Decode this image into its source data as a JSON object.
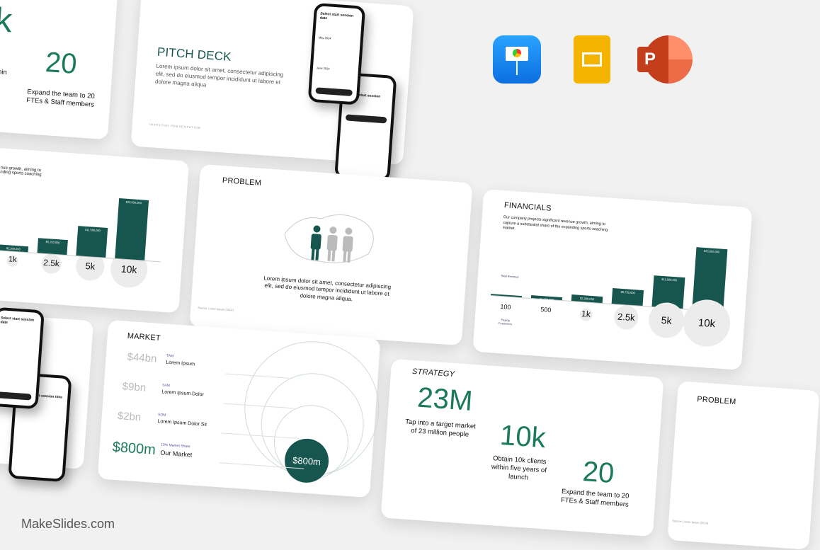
{
  "brand": "MakeSlides.com",
  "apps": [
    {
      "name": "Keynote",
      "color": "#1a8cff"
    },
    {
      "name": "Google Slides",
      "color": "#f4b400"
    },
    {
      "name": "PowerPoint",
      "color": "#d24726"
    }
  ],
  "accent": "#17564e",
  "strategy_partial": {
    "stat_big": "k",
    "stat_text": "s within\nnch",
    "stat3_value": "20",
    "stat3_text": "Expand the team to 20 FTEs & Staff members"
  },
  "pitch": {
    "title": "PITCH DECK",
    "body": "Lorem ipsum dolor sit amet, consectetur adipiscing elit, sed do eiusmod tempor incididunt ut labore et dolore magna aliqua",
    "footer": "INVESTOR PRESENTATION",
    "phone1_title": "Select start session date",
    "phone1_month1": "May 2024",
    "phone1_month2": "June 2024",
    "phone2_title": "Select start session time"
  },
  "chart_partial": {
    "text": "nue growth, aiming to\nnding sports coaching",
    "bars": [
      {
        "label": "1k",
        "value": "$2,300,000"
      },
      {
        "label": "2.5k",
        "value": "$5,750,000"
      },
      {
        "label": "5k",
        "value": "$11,500,000"
      },
      {
        "label": "10k",
        "value": "$23,000,000"
      }
    ]
  },
  "problem": {
    "title": "PROBLEM",
    "body": "Lorem ipsum dolor sit amet, consectetur adipiscing elit, sed do eiusmod tempor incididunt ut labore et dolore magna aliqua.",
    "source": "Source: Lorem ipsum (2024)"
  },
  "financials": {
    "title": "FINANCIALS",
    "body": "Our company projects significant revenue growth, aiming to capture a substantial share of the expanding sports coaching market.",
    "revenue_label": "Total Revenue",
    "customers_label": "Paying Customers",
    "bars": [
      {
        "label": "100",
        "value": "$230,000",
        "revenue": 230000
      },
      {
        "label": "500",
        "value": "$1,150,000",
        "revenue": 1150000
      },
      {
        "label": "1k",
        "value": "$2,300,000",
        "revenue": 2300000
      },
      {
        "label": "2.5k",
        "value": "$5,750,000",
        "revenue": 5750000
      },
      {
        "label": "5k",
        "value": "$11,500,000",
        "revenue": 11500000
      },
      {
        "label": "10k",
        "value": "$23,000,000",
        "revenue": 23000000
      }
    ]
  },
  "market": {
    "title": "MARKET",
    "rows": [
      {
        "value": "$44bn",
        "tag": "TAM",
        "name": "Lorem Ipsum"
      },
      {
        "value": "$9bn",
        "tag": "SAM",
        "name": "Lorem Ipsum Dolor"
      },
      {
        "value": "$2bn",
        "tag": "SOM",
        "name": "Lorem Ipsum Dolor Sit"
      },
      {
        "value": "$800m",
        "tag": "10% Market Share",
        "name": "Our Market"
      }
    ],
    "circle_label": "$800m"
  },
  "strategy": {
    "title": "STRATEGY",
    "stats": [
      {
        "value": "23M",
        "text": "Tap into a target market of 23 million people"
      },
      {
        "value": "10k",
        "text": "Obtain 10k clients within five years of launch"
      },
      {
        "value": "20",
        "text": "Expand the team to 20 FTEs & Staff members"
      }
    ]
  },
  "problem2": {
    "title": "PROBLEM",
    "source": "Source: Lorem Ipsum (2024)"
  }
}
